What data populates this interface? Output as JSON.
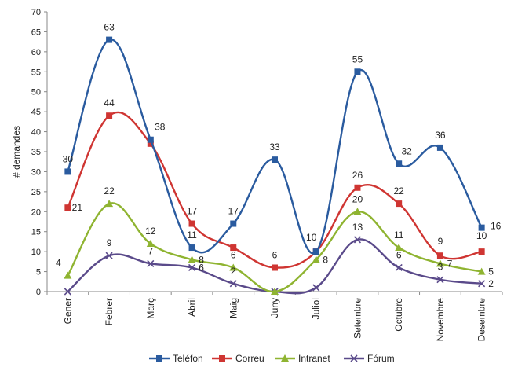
{
  "chart_data": {
    "type": "line",
    "title": "",
    "xlabel": "",
    "ylabel": "# demandes",
    "ylim": [
      0,
      70
    ],
    "yticks": [
      0,
      5,
      10,
      15,
      20,
      25,
      30,
      35,
      40,
      45,
      50,
      55,
      60,
      65,
      70
    ],
    "grid": false,
    "legend": "bottom",
    "categories": [
      "Gener",
      "Febrer",
      "Març",
      "Abril",
      "Maig",
      "Juny",
      "Juliol",
      "Setembre",
      "Octubre",
      "Novembre",
      "Desembre"
    ],
    "series": [
      {
        "name": "Teléfon",
        "color": "#2a5b9f",
        "marker": "square",
        "values": [
          30,
          63,
          38,
          11,
          17,
          33,
          10,
          55,
          32,
          36,
          16
        ],
        "labels": [
          "30",
          "63",
          "38",
          "11",
          "17",
          "33",
          "10",
          "55",
          "32",
          "36",
          "16"
        ]
      },
      {
        "name": "Correu",
        "color": "#cf3532",
        "marker": "square",
        "values": [
          21,
          44,
          37,
          17,
          11,
          6,
          10,
          26,
          22,
          9,
          10
        ],
        "labels": [
          "21",
          "44",
          "",
          "17",
          "",
          "6",
          "",
          "26",
          "22",
          "9",
          "10"
        ]
      },
      {
        "name": "Intranet",
        "color": "#8fb431",
        "marker": "triangle",
        "values": [
          4,
          22,
          12,
          8,
          6,
          0,
          8,
          20,
          11,
          7,
          5
        ],
        "labels": [
          "4",
          "22",
          "12",
          "8",
          "6",
          "",
          "8",
          "20",
          "11",
          "7",
          "5"
        ]
      },
      {
        "name": "Fórum",
        "color": "#5a4a8a",
        "marker": "x",
        "values": [
          0,
          9,
          7,
          6,
          2,
          0,
          1,
          13,
          6,
          3,
          2
        ],
        "labels": [
          "",
          "9",
          "7",
          "6",
          "2",
          "",
          "",
          "13",
          "6",
          "3",
          "2"
        ]
      }
    ]
  }
}
